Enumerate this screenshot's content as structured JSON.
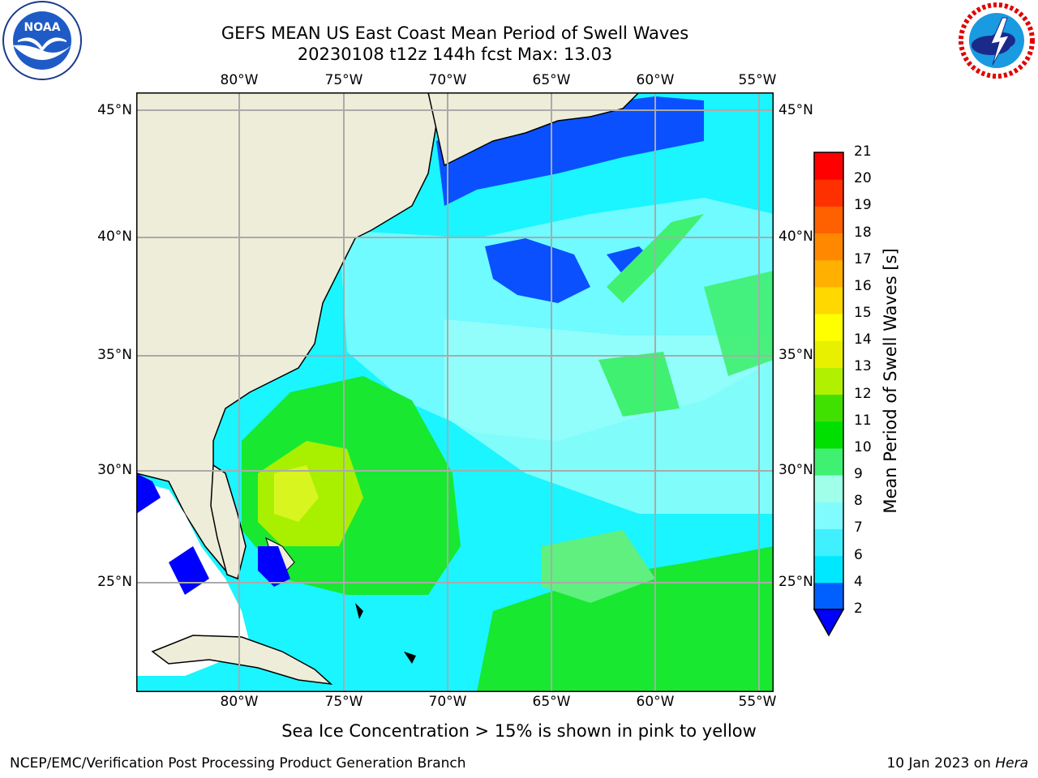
{
  "title_line1": "GEFS MEAN US East Coast Mean Period of Swell Waves",
  "title_line2": "20230108 t12z 144h fcst   Max: 13.03",
  "noaa_logo_text": "NOAA",
  "nws_logo_text": "NATIONAL WEATHER SERVICE",
  "lon_labels": [
    "80°W",
    "75°W",
    "70°W",
    "65°W",
    "60°W",
    "55°W"
  ],
  "lat_labels": [
    "45°N",
    "40°N",
    "35°N",
    "30°N",
    "25°N"
  ],
  "colorbar": {
    "title": "Mean Period of Swell Waves [s]",
    "ticks": [
      "2",
      "4",
      "6",
      "7",
      "8",
      "9",
      "10",
      "11",
      "12",
      "13",
      "14",
      "15",
      "16",
      "17",
      "18",
      "19",
      "20",
      "21"
    ],
    "colors": [
      "#0000ff",
      "#0060ff",
      "#00e8ff",
      "#40f0ff",
      "#80fcff",
      "#a0ffe8",
      "#40f070",
      "#00e000",
      "#40e000",
      "#b0f000",
      "#e8f000",
      "#ffff00",
      "#ffd800",
      "#ffb000",
      "#ff8800",
      "#ff6000",
      "#ff3000",
      "#ff0000"
    ]
  },
  "subtitle": "Sea Ice Concentration > 15% is shown in pink to yellow",
  "footer_left": "NCEP/EMC/Verification Post Processing Product Generation Branch",
  "footer_date": "10 Jan 2023 on",
  "footer_machine": "Hera"
}
